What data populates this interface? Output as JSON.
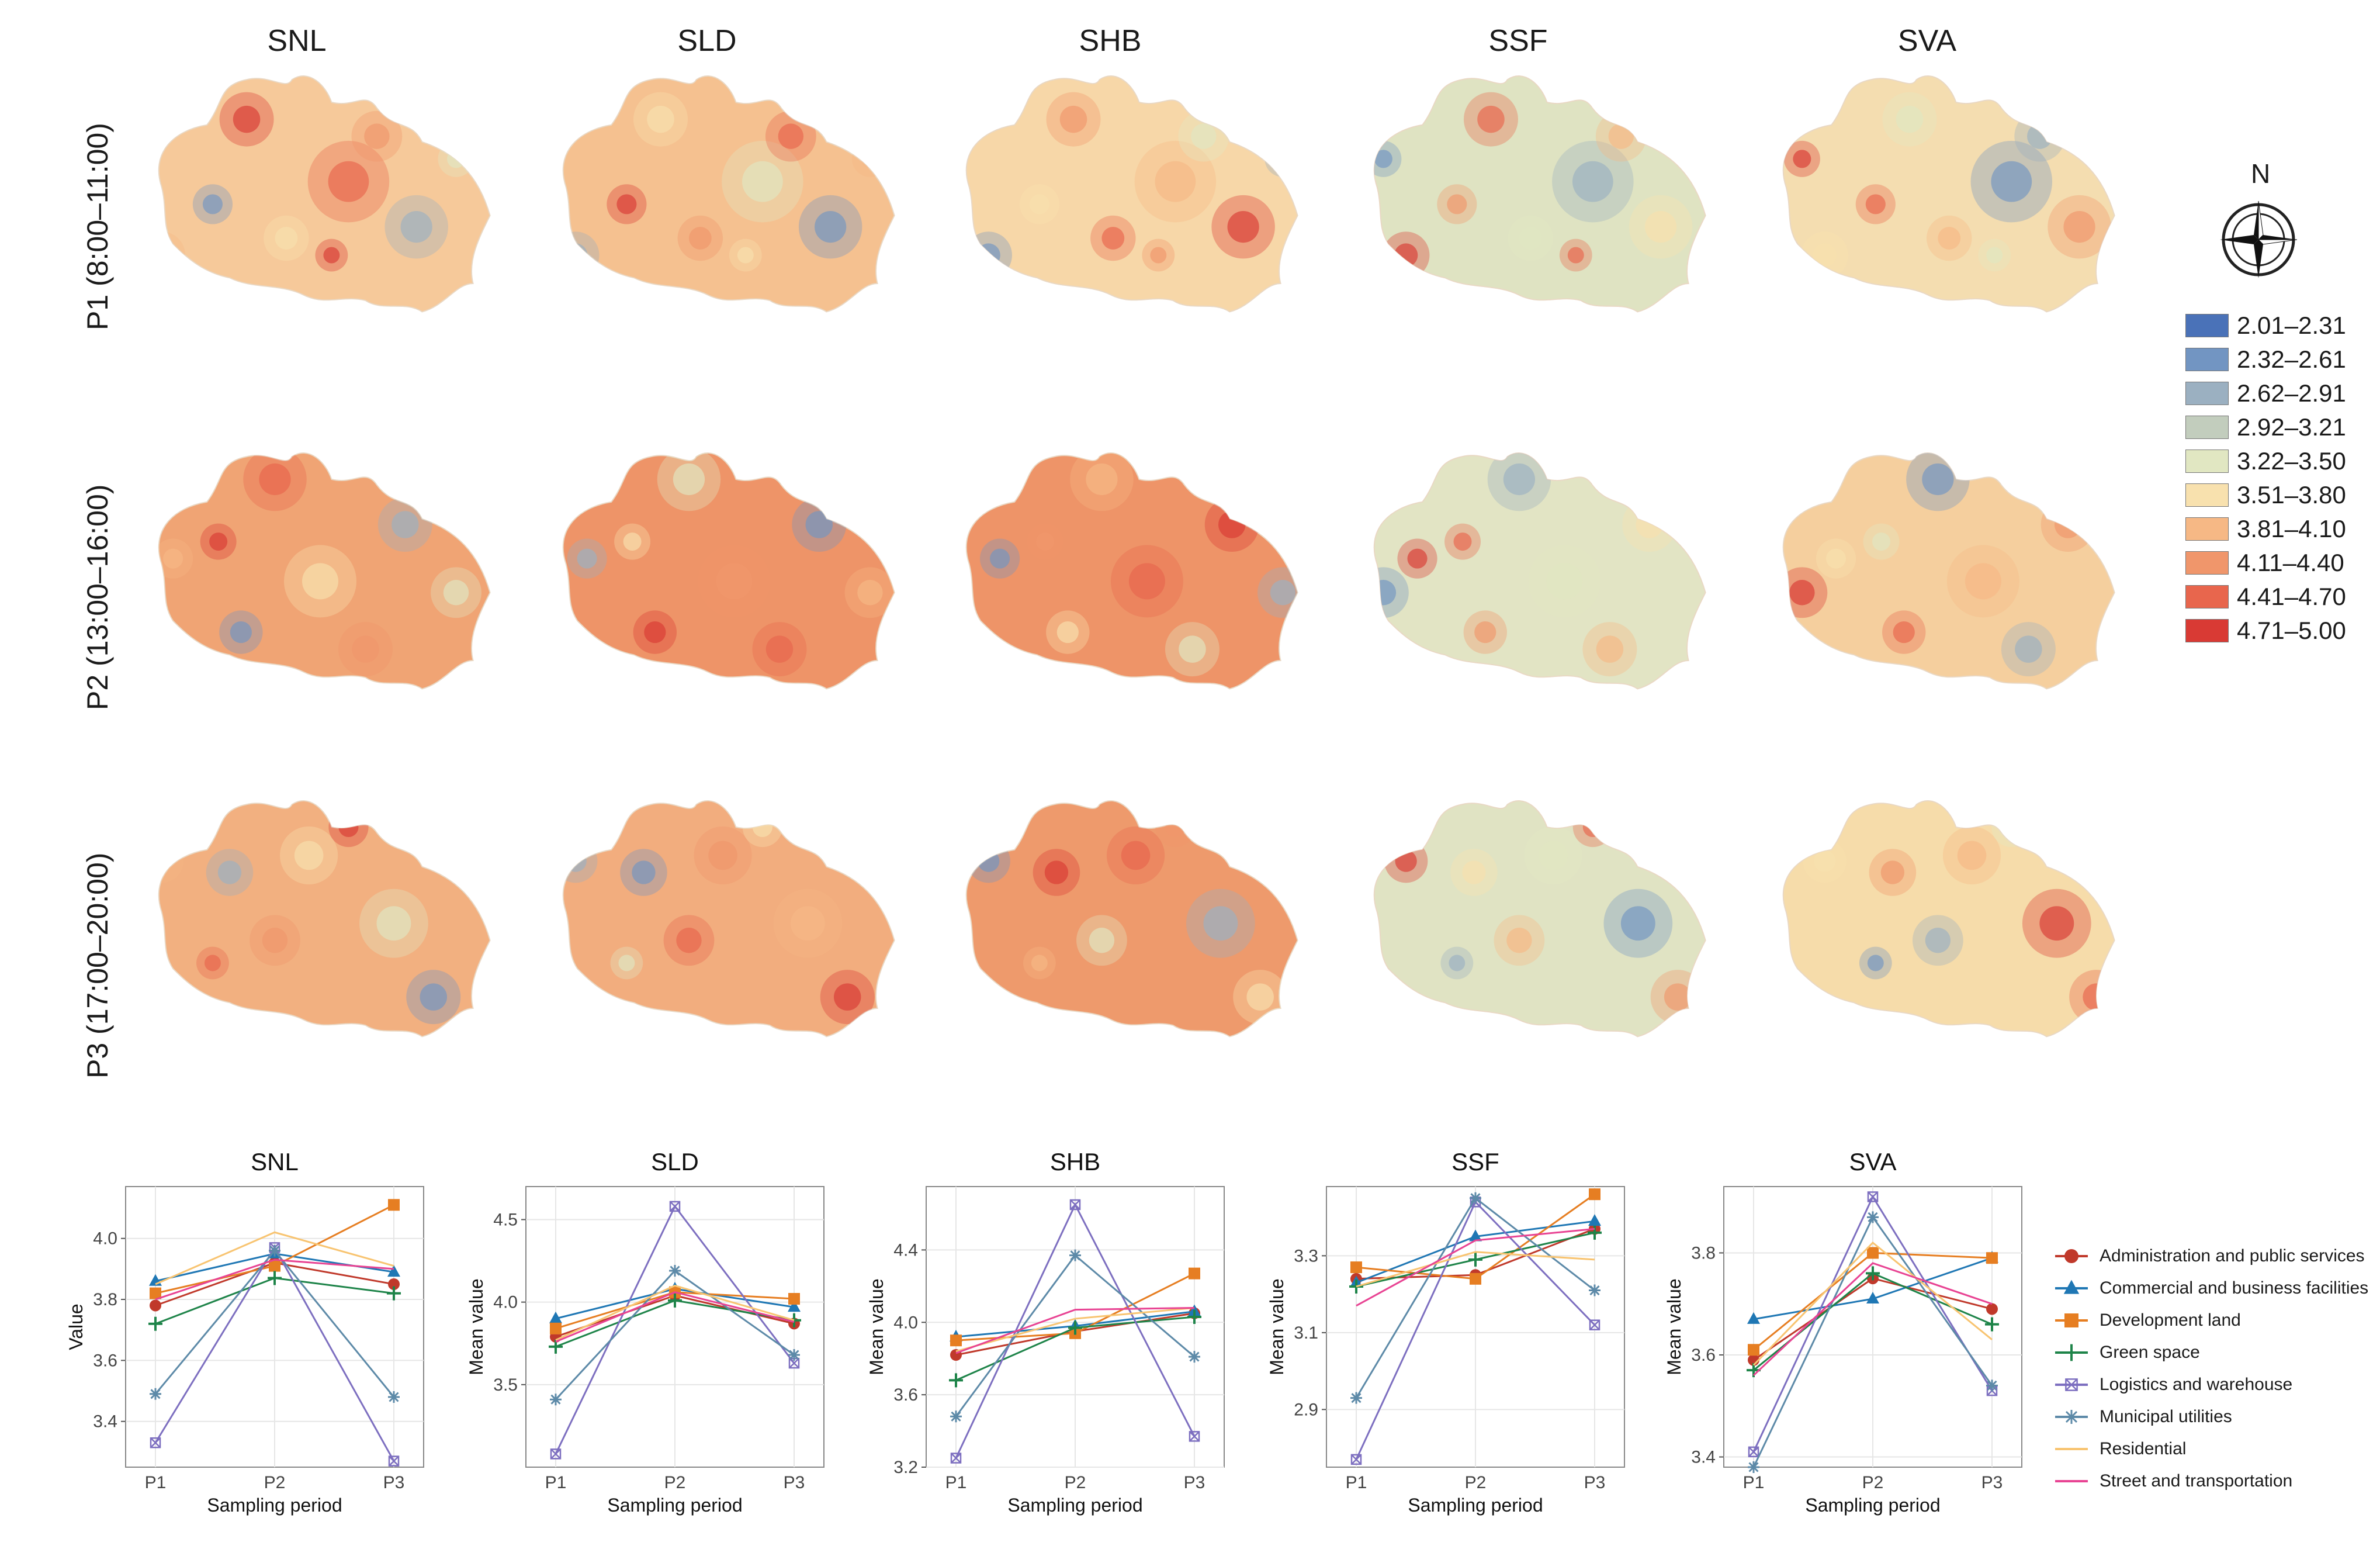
{
  "maps": {
    "columns": [
      "SNL",
      "SLD",
      "SHB",
      "SSF",
      "SVA"
    ],
    "rows": [
      "P1 (8:00–11:00)",
      "P2 (13:00–16:00)",
      "P3 (17:00–20:00)"
    ],
    "base_colors": [
      [
        "#f6c99a",
        "#f5c190",
        "#f7d7a8",
        "#dfe3c2",
        "#f4ddb0"
      ],
      [
        "#f0a474",
        "#ee9468",
        "#ee9468",
        "#e2e4c4",
        "#f5cf9e"
      ],
      [
        "#f2b080",
        "#f2ad7e",
        "#ee9a6c",
        "#e0e3c3",
        "#f6dcaa"
      ]
    ]
  },
  "legend": {
    "north_label": "N",
    "classes": [
      {
        "label": "2.01–2.31",
        "color": "#4a72b8"
      },
      {
        "label": "2.32–2.61",
        "color": "#7295c2"
      },
      {
        "label": "2.62–2.91",
        "color": "#9bb0c1"
      },
      {
        "label": "2.92–3.21",
        "color": "#c2cdbd"
      },
      {
        "label": "3.22–3.50",
        "color": "#e1e7c2"
      },
      {
        "label": "3.51–3.80",
        "color": "#f8e1ae"
      },
      {
        "label": "3.81–4.10",
        "color": "#f6b885"
      },
      {
        "label": "4.11–4.40",
        "color": "#f0966b"
      },
      {
        "label": "4.41–4.70",
        "color": "#e8664d"
      },
      {
        "label": "4.71–5.00",
        "color": "#d93a34"
      }
    ]
  },
  "category_legend": [
    {
      "name": "Administration and public services",
      "color": "#c0392b",
      "marker": "circle"
    },
    {
      "name": "Commercial and business facilities",
      "color": "#1f77b4",
      "marker": "triangle"
    },
    {
      "name": "Development land",
      "color": "#e67e22",
      "marker": "square"
    },
    {
      "name": "Green space",
      "color": "#1e8449",
      "marker": "plus"
    },
    {
      "name": "Logistics and warehouse",
      "color": "#7d6fc0",
      "marker": "boxx"
    },
    {
      "name": "Municipal utilities",
      "color": "#5d8aa8",
      "marker": "star"
    },
    {
      "name": "Residential",
      "color": "#f8c471",
      "marker": "none"
    },
    {
      "name": "Street and transportation",
      "color": "#e84393",
      "marker": "none"
    }
  ],
  "chart_data": [
    {
      "type": "line",
      "title": "SNL",
      "xlabel": "Sampling period",
      "ylabel": "Value",
      "categories": [
        "P1",
        "P2",
        "P3"
      ],
      "ylim": [
        3.25,
        4.17
      ],
      "yticks": [
        "3.4",
        "3.6",
        "3.8",
        "4.0"
      ],
      "series": [
        {
          "name": "Administration and public services",
          "values": [
            3.78,
            3.92,
            3.85
          ]
        },
        {
          "name": "Commercial and business facilities",
          "values": [
            3.86,
            3.95,
            3.89
          ]
        },
        {
          "name": "Development land",
          "values": [
            3.82,
            3.91,
            4.11
          ]
        },
        {
          "name": "Green space",
          "values": [
            3.72,
            3.87,
            3.82
          ]
        },
        {
          "name": "Logistics and warehouse",
          "values": [
            3.33,
            3.97,
            3.27
          ]
        },
        {
          "name": "Municipal utilities",
          "values": [
            3.49,
            3.96,
            3.48
          ]
        },
        {
          "name": "Residential",
          "values": [
            3.85,
            4.02,
            3.91
          ]
        },
        {
          "name": "Street and transportation",
          "values": [
            3.8,
            3.93,
            3.9
          ]
        }
      ]
    },
    {
      "type": "line",
      "title": "SLD",
      "xlabel": "Sampling period",
      "ylabel": "Mean value",
      "categories": [
        "P1",
        "P2",
        "P3"
      ],
      "ylim": [
        3.0,
        4.7
      ],
      "yticks": [
        "3.5",
        "4.0",
        "4.5"
      ],
      "series": [
        {
          "name": "Administration and public services",
          "values": [
            3.79,
            4.04,
            3.87
          ]
        },
        {
          "name": "Commercial and business facilities",
          "values": [
            3.9,
            4.08,
            3.97
          ]
        },
        {
          "name": "Development land",
          "values": [
            3.84,
            4.06,
            4.02
          ]
        },
        {
          "name": "Green space",
          "values": [
            3.73,
            4.01,
            3.89
          ]
        },
        {
          "name": "Logistics and warehouse",
          "values": [
            3.08,
            4.58,
            3.63
          ]
        },
        {
          "name": "Municipal utilities",
          "values": [
            3.41,
            4.19,
            3.68
          ]
        },
        {
          "name": "Residential",
          "values": [
            3.77,
            4.1,
            3.89
          ]
        },
        {
          "name": "Street and transportation",
          "values": [
            3.76,
            4.06,
            3.88
          ]
        }
      ]
    },
    {
      "type": "line",
      "title": "SHB",
      "xlabel": "Sampling period",
      "ylabel": "Mean value",
      "categories": [
        "P1",
        "P2",
        "P3"
      ],
      "ylim": [
        3.2,
        4.75
      ],
      "yticks": [
        "3.2",
        "3.6",
        "4.0",
        "4.4"
      ],
      "series": [
        {
          "name": "Administration and public services",
          "values": [
            3.82,
            3.95,
            4.05
          ]
        },
        {
          "name": "Commercial and business facilities",
          "values": [
            3.92,
            3.98,
            4.06
          ]
        },
        {
          "name": "Development land",
          "values": [
            3.9,
            3.94,
            4.27
          ]
        },
        {
          "name": "Green space",
          "values": [
            3.68,
            3.97,
            4.03
          ]
        },
        {
          "name": "Logistics and warehouse",
          "values": [
            3.25,
            4.65,
            3.37
          ]
        },
        {
          "name": "Municipal utilities",
          "values": [
            3.48,
            4.37,
            3.81
          ]
        },
        {
          "name": "Residential",
          "values": [
            3.84,
            4.02,
            4.08
          ]
        },
        {
          "name": "Street and transportation",
          "values": [
            3.83,
            4.07,
            4.08
          ]
        }
      ]
    },
    {
      "type": "line",
      "title": "SSF",
      "xlabel": "Sampling period",
      "ylabel": "Mean value",
      "categories": [
        "P1",
        "P2",
        "P3"
      ],
      "ylim": [
        2.75,
        3.48
      ],
      "yticks": [
        "2.9",
        "3.1",
        "3.3"
      ],
      "series": [
        {
          "name": "Administration and public services",
          "values": [
            3.24,
            3.25,
            3.37
          ]
        },
        {
          "name": "Commercial and business facilities",
          "values": [
            3.23,
            3.35,
            3.39
          ]
        },
        {
          "name": "Development land",
          "values": [
            3.27,
            3.24,
            3.46
          ]
        },
        {
          "name": "Green space",
          "values": [
            3.22,
            3.29,
            3.36
          ]
        },
        {
          "name": "Logistics and warehouse",
          "values": [
            2.77,
            3.44,
            3.12
          ]
        },
        {
          "name": "Municipal utilities",
          "values": [
            2.93,
            3.45,
            3.21
          ]
        },
        {
          "name": "Residential",
          "values": [
            3.22,
            3.31,
            3.29
          ]
        },
        {
          "name": "Street and transportation",
          "values": [
            3.17,
            3.34,
            3.37
          ]
        }
      ]
    },
    {
      "type": "line",
      "title": "SVA",
      "xlabel": "Sampling period",
      "ylabel": "Mean value",
      "categories": [
        "P1",
        "P2",
        "P3"
      ],
      "ylim": [
        3.38,
        3.93
      ],
      "yticks": [
        "3.4",
        "3.6",
        "3.8"
      ],
      "series": [
        {
          "name": "Administration and public services",
          "values": [
            3.59,
            3.75,
            3.69
          ]
        },
        {
          "name": "Commercial and business facilities",
          "values": [
            3.67,
            3.71,
            3.79
          ]
        },
        {
          "name": "Development land",
          "values": [
            3.61,
            3.8,
            3.79
          ]
        },
        {
          "name": "Green space",
          "values": [
            3.57,
            3.76,
            3.66
          ]
        },
        {
          "name": "Logistics and warehouse",
          "values": [
            3.41,
            3.91,
            3.53
          ]
        },
        {
          "name": "Municipal utilities",
          "values": [
            3.38,
            3.87,
            3.54
          ]
        },
        {
          "name": "Residential",
          "values": [
            3.58,
            3.82,
            3.63
          ]
        },
        {
          "name": "Street and transportation",
          "values": [
            3.56,
            3.78,
            3.7
          ]
        }
      ]
    }
  ]
}
